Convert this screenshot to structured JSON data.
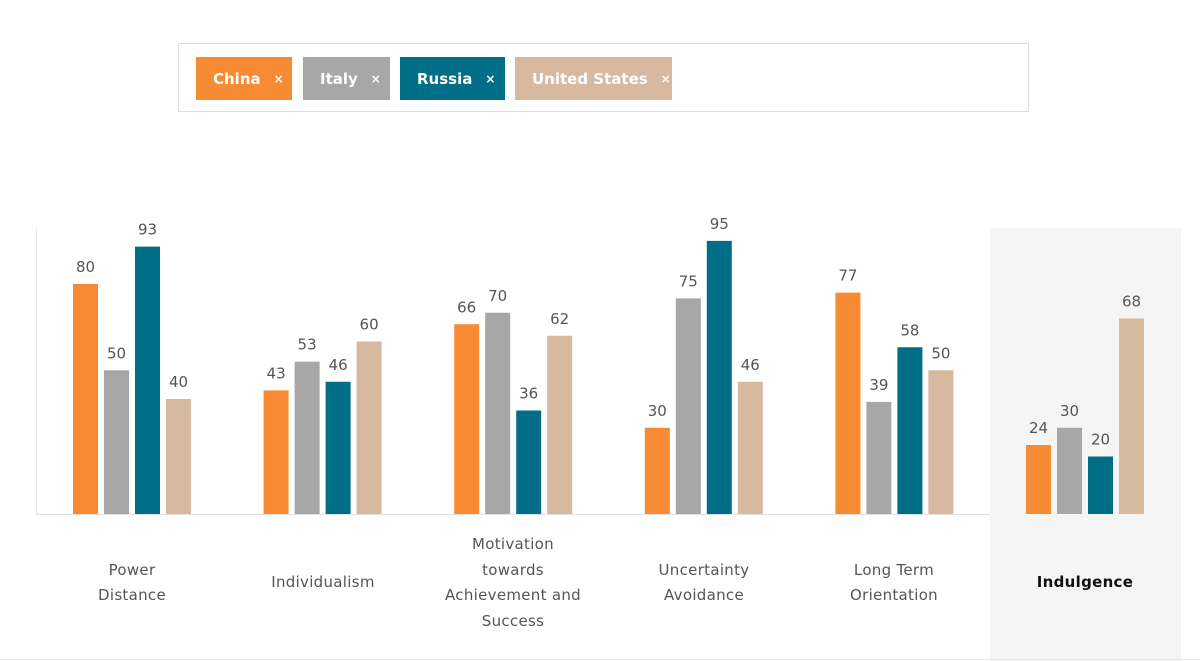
{
  "filters": [
    {
      "label": "China",
      "color": "#f68b33"
    },
    {
      "label": "Italy",
      "color": "#a7a7a7"
    },
    {
      "label": "Russia",
      "color": "#006e87"
    },
    {
      "label": "United States",
      "color": "#d6b99f"
    }
  ],
  "remove_glyph": "×",
  "chart_data": {
    "type": "bar",
    "title": "",
    "xlabel": "",
    "ylabel": "",
    "ylim": [
      0,
      100
    ],
    "grid": false,
    "selected_category": "Indulgence",
    "categories": [
      "Power Distance",
      "Individualism",
      "Motivation towards Achievement and Success",
      "Uncertainty Avoidance",
      "Long Term Orientation",
      "Indulgence"
    ],
    "series": [
      {
        "name": "China",
        "color": "#f68b33",
        "values": [
          80,
          43,
          66,
          30,
          77,
          24
        ]
      },
      {
        "name": "Italy",
        "color": "#a7a7a7",
        "values": [
          50,
          53,
          70,
          75,
          39,
          30
        ]
      },
      {
        "name": "Russia",
        "color": "#006e87",
        "values": [
          93,
          46,
          36,
          95,
          58,
          20
        ]
      },
      {
        "name": "United States",
        "color": "#d6b99f",
        "values": [
          40,
          60,
          62,
          46,
          50,
          68
        ]
      }
    ]
  }
}
